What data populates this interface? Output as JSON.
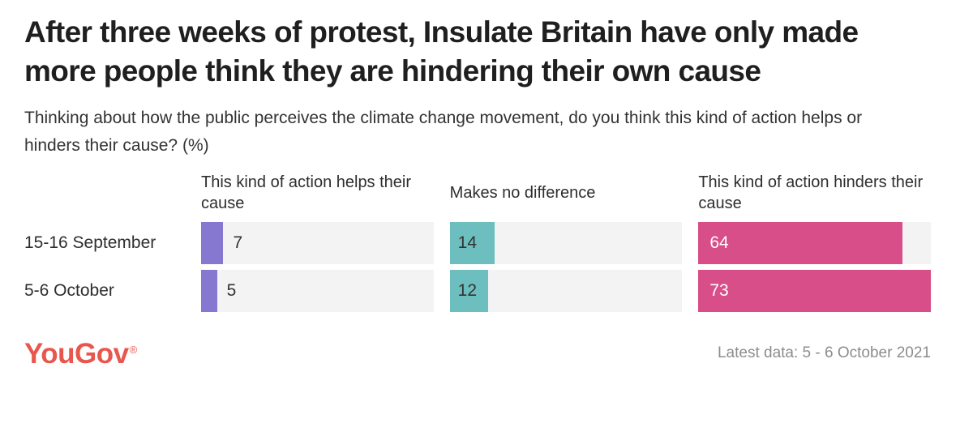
{
  "title": "After three weeks of protest, Insulate Britain have only made more people think they are hindering their own cause",
  "subtitle": "Thinking about how the public perceives the climate change movement, do you think this kind of action helps or hinders their cause? (%)",
  "colors": {
    "helps": "#8678D0",
    "no_difference": "#6CBFBE",
    "hinders": "#D84E88",
    "track": "#F3F3F3",
    "logo": "#E9564D",
    "title_text": "#1F1F1F",
    "body_text": "#333333",
    "footer_text": "#8C8C8C"
  },
  "chart_data": {
    "type": "bar",
    "orientation": "horizontal",
    "unit": "%",
    "scale_max": 73,
    "grid": false,
    "columns": [
      {
        "header": "This kind of action helps their cause",
        "series_key": "helps",
        "value_position": "outside",
        "value_color": "#333333"
      },
      {
        "header": "Makes no difference",
        "series_key": "no_difference",
        "value_position": "inside",
        "value_color": "#333333"
      },
      {
        "header": "This kind of action hinders their cause",
        "series_key": "hinders",
        "value_position": "inside",
        "value_color": "#FFFFFF"
      }
    ],
    "rows": [
      {
        "label": "15-16 September",
        "values": [
          7,
          14,
          64
        ]
      },
      {
        "label": "5-6 October",
        "values": [
          5,
          12,
          73
        ]
      }
    ]
  },
  "footer": {
    "logo_text": "YouGov",
    "registered_mark": "®",
    "latest_data": "Latest data: 5 - 6 October 2021"
  }
}
